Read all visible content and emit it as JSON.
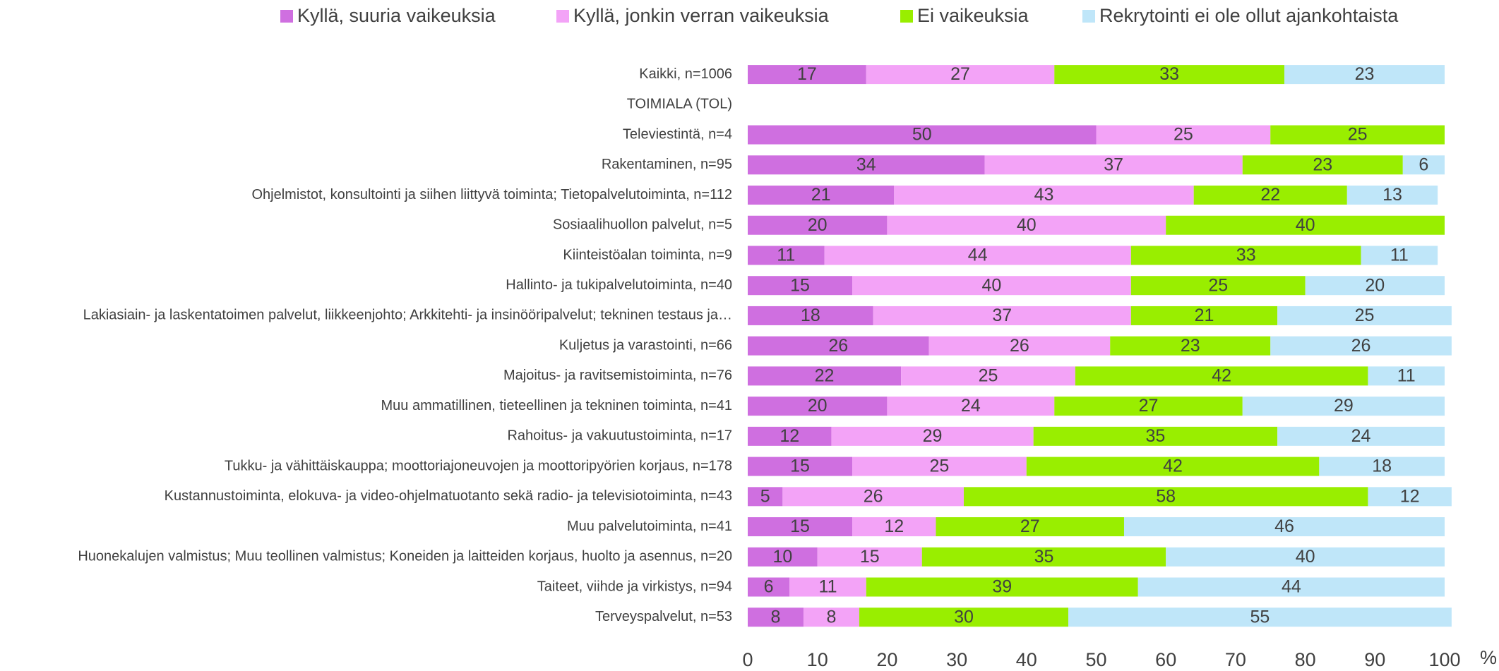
{
  "chart_data": {
    "type": "stacked_barh",
    "x_label": "%",
    "categories": [
      "Kaikki, n=1006",
      "TOIMIALA (TOL)",
      "Televiestintä, n=4",
      "Rakentaminen, n=95",
      "Ohjelmistot, konsultointi ja siihen liittyvä toiminta; Tietopalvelutoiminta, n=112",
      "Sosiaalihuollon palvelut, n=5",
      "Kiinteistöalan toiminta, n=9",
      "Hallinto- ja tukipalvelutoiminta, n=40",
      "Lakiasiain- ja laskentatoimen palvelut, liikkeenjohto; Arkkitehti- ja insinööripalvelut; tekninen testaus ja…",
      "Kuljetus ja varastointi, n=66",
      "Majoitus- ja ravitsemistoiminta, n=76",
      "Muu ammatillinen, tieteellinen ja tekninen toiminta, n=41",
      "Rahoitus- ja vakuutustoiminta, n=17",
      "Tukku- ja vähittäiskauppa; moottoriajoneuvojen ja moottoripyörien korjaus, n=178",
      "Kustannustoiminta, elokuva- ja video-ohjelmatuotanto sekä radio- ja televisiotoiminta, n=43",
      "Muu palvelutoiminta, n=41",
      "Huonekalujen valmistus; Muu teollinen valmistus; Koneiden ja laitteiden korjaus, huolto ja asennus, n=20",
      "Taiteet, viihde ja virkistys, n=94",
      "Terveyspalvelut, n=53"
    ],
    "series": [
      {
        "name": "Kyllä, suuria vaikeuksia",
        "color": "#cf6fe0",
        "values": [
          17,
          null,
          50,
          34,
          21,
          20,
          11,
          15,
          18,
          26,
          22,
          20,
          12,
          15,
          5,
          15,
          10,
          6,
          8
        ]
      },
      {
        "name": "Kyllä, jonkin verran vaikeuksia",
        "color": "#f3a3f7",
        "values": [
          27,
          null,
          25,
          37,
          43,
          40,
          44,
          40,
          37,
          26,
          25,
          24,
          29,
          25,
          26,
          12,
          15,
          11,
          8
        ]
      },
      {
        "name": "Ei vaikeuksia",
        "color": "#99ee00",
        "values": [
          33,
          null,
          25,
          23,
          22,
          40,
          33,
          25,
          21,
          23,
          42,
          27,
          35,
          42,
          58,
          27,
          35,
          39,
          30
        ]
      },
      {
        "name": "Rekrytointi ei ole ollut ajankohtaista",
        "color": "#bfe6f9",
        "values": [
          23,
          null,
          null,
          6,
          13,
          null,
          11,
          20,
          25,
          26,
          11,
          29,
          24,
          18,
          12,
          46,
          40,
          44,
          55
        ]
      }
    ],
    "xlim": [
      0,
      100
    ],
    "xticks": [
      0,
      10,
      20,
      30,
      40,
      50,
      60,
      70,
      80,
      90,
      100
    ],
    "grid": false,
    "legend": "top"
  }
}
